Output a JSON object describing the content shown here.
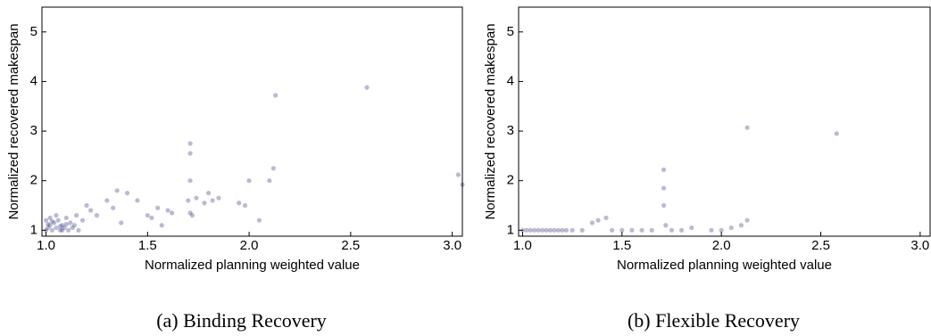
{
  "chart_data": [
    {
      "type": "scatter",
      "caption": "(a) Binding Recovery",
      "xlabel": "Normalized planning weighted value",
      "ylabel": "Normalized recovered makespan",
      "color": "#1a1a6e",
      "xlim": [
        0.98,
        3.05
      ],
      "ylim": [
        0.88,
        5.5
      ],
      "xticks": [
        {
          "value": 1.0,
          "label": "1.0"
        },
        1.5,
        {
          "value": 2.0,
          "label": "2.0"
        },
        2.5,
        {
          "value": 3.0,
          "label": "3.0"
        }
      ],
      "yticks": [
        1,
        2,
        3,
        4,
        5
      ],
      "x": [
        1.0,
        1.01,
        1.02,
        1.03,
        1.04,
        1.05,
        1.06,
        1.07,
        1.08,
        1.09,
        1.1,
        1.11,
        1.12,
        1.13,
        1.14,
        1.0,
        1.02,
        1.05,
        1.08,
        1.16,
        1.01,
        1.03,
        1.07,
        1.1,
        1.18,
        1.15,
        1.2,
        1.22,
        1.25,
        1.3,
        1.33,
        1.35,
        1.37,
        1.4,
        1.45,
        1.5,
        1.52,
        1.55,
        1.57,
        1.6,
        1.62,
        1.7,
        1.71,
        1.71,
        1.71,
        1.71,
        1.72,
        1.74,
        1.78,
        1.8,
        1.82,
        1.85,
        1.95,
        1.98,
        2.0,
        2.05,
        2.1,
        2.12,
        2.13,
        2.58,
        3.03,
        3.05
      ],
      "y": [
        1.0,
        1.05,
        1.1,
        1.0,
        1.15,
        1.05,
        1.2,
        1.0,
        1.1,
        1.05,
        1.25,
        1.0,
        1.15,
        1.05,
        1.1,
        1.2,
        1.25,
        1.3,
        1.0,
        1.0,
        1.12,
        1.18,
        1.08,
        1.12,
        1.2,
        1.3,
        1.5,
        1.4,
        1.3,
        1.6,
        1.45,
        1.8,
        1.15,
        1.75,
        1.6,
        1.3,
        1.25,
        1.45,
        1.1,
        1.4,
        1.35,
        1.6,
        2.75,
        2.55,
        2.0,
        1.35,
        1.3,
        1.65,
        1.55,
        1.75,
        1.6,
        1.65,
        1.55,
        1.5,
        2.0,
        1.2,
        2.0,
        2.25,
        3.72,
        3.88,
        2.12,
        1.92
      ]
    },
    {
      "type": "scatter",
      "caption": "(b) Flexible Recovery",
      "xlabel": "Normalized planning weighted value",
      "ylabel": "Normalized recovered makespan",
      "color": "#1a1a6e",
      "xlim": [
        0.98,
        3.05
      ],
      "ylim": [
        0.88,
        5.5
      ],
      "xticks": [
        {
          "value": 1.0,
          "label": "1.0"
        },
        1.5,
        {
          "value": 2.0,
          "label": "2.0"
        },
        2.5,
        {
          "value": 3.0,
          "label": "3.0"
        }
      ],
      "yticks": [
        1,
        2,
        3,
        4,
        5
      ],
      "x": [
        1.0,
        1.02,
        1.04,
        1.06,
        1.08,
        1.1,
        1.12,
        1.14,
        1.16,
        1.18,
        1.2,
        1.22,
        1.25,
        1.3,
        1.35,
        1.38,
        1.42,
        1.45,
        1.5,
        1.55,
        1.6,
        1.65,
        1.71,
        1.71,
        1.71,
        1.72,
        1.75,
        1.8,
        1.85,
        1.95,
        2.0,
        2.05,
        2.1,
        2.13,
        2.13,
        2.58,
        3.07
      ],
      "y": [
        1.0,
        1.0,
        1.0,
        1.0,
        1.0,
        1.0,
        1.0,
        1.0,
        1.0,
        1.0,
        1.0,
        1.0,
        1.0,
        1.0,
        1.15,
        1.2,
        1.25,
        1.0,
        1.0,
        1.0,
        1.0,
        1.0,
        2.22,
        1.85,
        1.5,
        1.1,
        1.0,
        1.0,
        1.05,
        1.0,
        1.0,
        1.05,
        1.1,
        1.2,
        3.07,
        2.95,
        1.0
      ]
    }
  ]
}
